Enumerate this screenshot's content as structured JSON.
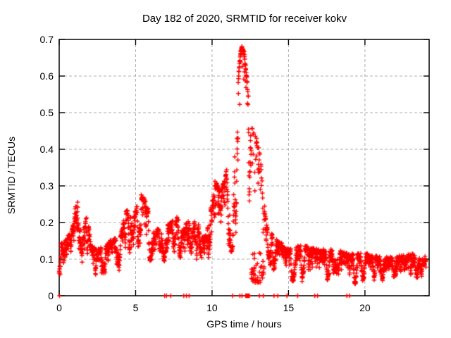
{
  "title": "Day 182 of 2020, SRMTID for receiver kokv",
  "axes": {
    "x_label": "GPS time / hours",
    "y_label": "SRMTID / TECUs"
  },
  "chart_data": {
    "type": "scatter",
    "title": "Day 182 of 2020, SRMTID for receiver kokv",
    "xlabel": "GPS time / hours",
    "ylabel": "SRMTID / TECUs",
    "marker": "plus-cross",
    "marker_color": "#ff0000",
    "marker_half_size_px": 3.2,
    "grid": true,
    "grid_color": "#b0b0b0",
    "grid_dash": [
      4,
      3
    ],
    "border_color": "#000000",
    "xlim": [
      0,
      24.2
    ],
    "ylim": [
      0,
      0.7
    ],
    "x_ticks": [
      0,
      5,
      10,
      15,
      20
    ],
    "x_tick_labels": [
      "0",
      "5",
      "10",
      "15",
      "20"
    ],
    "y_ticks": [
      0,
      0.1,
      0.2,
      0.3,
      0.4,
      0.5,
      0.6,
      0.7
    ],
    "y_tick_labels": [
      "0",
      "0.1",
      "0.2",
      "0.3",
      "0.4",
      "0.5",
      "0.6",
      "0.7"
    ],
    "series": [
      {
        "name": "SRMTID",
        "epoch_step_hours": 0.01,
        "t_start": 0.0,
        "t_end": 23.99,
        "seed": 20201821,
        "envelope": [
          [
            0.0,
            0.04,
            0.13
          ],
          [
            0.4,
            0.05,
            0.15
          ],
          [
            0.8,
            0.06,
            0.17
          ],
          [
            1.0,
            0.08,
            0.22
          ],
          [
            1.15,
            0.09,
            0.27
          ],
          [
            1.3,
            0.08,
            0.22
          ],
          [
            1.5,
            0.07,
            0.19
          ],
          [
            1.85,
            0.06,
            0.21
          ],
          [
            2.1,
            0.05,
            0.13
          ],
          [
            2.5,
            0.04,
            0.12
          ],
          [
            3.0,
            0.05,
            0.13
          ],
          [
            3.5,
            0.06,
            0.15
          ],
          [
            4.0,
            0.06,
            0.16
          ],
          [
            4.4,
            0.07,
            0.23
          ],
          [
            4.8,
            0.09,
            0.21
          ],
          [
            5.1,
            0.1,
            0.24
          ],
          [
            5.35,
            0.1,
            0.27
          ],
          [
            5.6,
            0.1,
            0.26
          ],
          [
            5.9,
            0.09,
            0.22
          ],
          [
            6.2,
            0.08,
            0.17
          ],
          [
            6.6,
            0.08,
            0.18
          ],
          [
            7.0,
            0.08,
            0.19
          ],
          [
            7.4,
            0.09,
            0.2
          ],
          [
            7.7,
            0.09,
            0.21
          ],
          [
            8.0,
            0.07,
            0.18
          ],
          [
            8.4,
            0.07,
            0.2
          ],
          [
            8.7,
            0.06,
            0.17
          ],
          [
            9.0,
            0.07,
            0.22
          ],
          [
            9.25,
            0.05,
            0.15
          ],
          [
            9.6,
            0.05,
            0.16
          ],
          [
            9.85,
            0.08,
            0.22
          ],
          [
            10.05,
            0.1,
            0.26
          ],
          [
            10.2,
            0.1,
            0.31
          ],
          [
            10.45,
            0.11,
            0.29
          ],
          [
            10.75,
            0.11,
            0.3
          ],
          [
            11.05,
            0.12,
            0.36
          ],
          [
            11.35,
            0.13,
            0.42
          ],
          [
            11.6,
            0.15,
            0.52
          ],
          [
            11.8,
            0.17,
            0.64
          ],
          [
            11.95,
            0.18,
            0.68
          ],
          [
            12.1,
            0.18,
            0.66
          ],
          [
            12.3,
            0.17,
            0.58
          ],
          [
            12.5,
            0.14,
            0.47
          ],
          [
            12.7,
            0.12,
            0.44
          ],
          [
            12.95,
            0.11,
            0.42
          ],
          [
            13.15,
            0.1,
            0.38
          ],
          [
            13.35,
            0.08,
            0.28
          ],
          [
            13.55,
            0.07,
            0.19
          ],
          [
            13.8,
            0.06,
            0.17
          ],
          [
            14.1,
            0.05,
            0.15
          ],
          [
            14.5,
            0.04,
            0.14
          ],
          [
            15.0,
            0.04,
            0.12
          ],
          [
            15.6,
            0.04,
            0.13
          ],
          [
            16.2,
            0.04,
            0.13
          ],
          [
            17.0,
            0.03,
            0.12
          ],
          [
            18.0,
            0.04,
            0.12
          ],
          [
            19.0,
            0.03,
            0.11
          ],
          [
            20.0,
            0.04,
            0.11
          ],
          [
            21.0,
            0.03,
            0.1
          ],
          [
            22.0,
            0.03,
            0.1
          ],
          [
            23.0,
            0.03,
            0.11
          ],
          [
            23.99,
            0.03,
            0.1
          ]
        ],
        "notable_peaks": [
          {
            "t": 11.95,
            "value": 0.68
          },
          {
            "t": 12.2,
            "value": 0.62
          },
          {
            "t": 1.15,
            "value": 0.27
          },
          {
            "t": 5.35,
            "value": 0.27
          },
          {
            "t": 10.2,
            "value": 0.31
          }
        ],
        "zero_value_epochs": [
          0.02,
          6.9,
          7.02,
          7.3,
          8.15,
          8.32,
          8.5,
          11.35,
          11.82,
          11.96,
          12.2,
          12.24,
          12.28,
          12.32,
          12.36,
          12.4,
          12.44,
          13.1,
          13.35,
          14.05,
          14.3,
          14.9,
          15.6,
          16.72,
          16.9,
          18.82,
          19.0
        ]
      }
    ]
  }
}
